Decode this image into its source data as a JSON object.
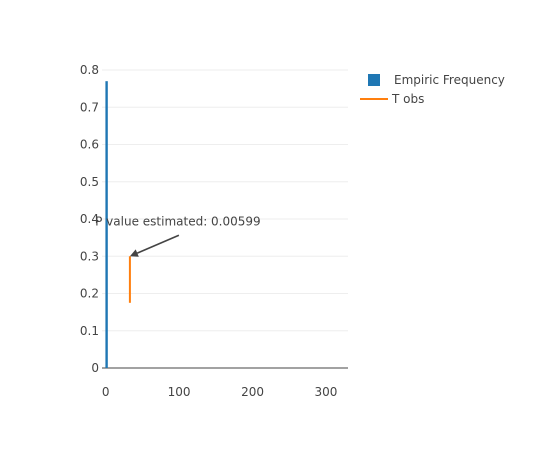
{
  "chart_data": {
    "type": "bar",
    "title": "",
    "xlabel": "",
    "ylabel": "",
    "xlim": [
      -5,
      330
    ],
    "ylim": [
      0,
      0.8
    ],
    "x_ticks": [
      "0",
      "100",
      "200",
      "300"
    ],
    "x_tick_values": [
      0,
      100,
      200,
      300
    ],
    "y_ticks": [
      "0",
      "0.1",
      "0.2",
      "0.3",
      "0.4",
      "0.5",
      "0.6",
      "0.7",
      "0.8"
    ],
    "y_tick_values": [
      0,
      0.1,
      0.2,
      0.3,
      0.4,
      0.5,
      0.6,
      0.7,
      0.8
    ],
    "grid": true,
    "legend_position": "top-right",
    "series": [
      {
        "name": "Empiric Frequency",
        "kind": "bar",
        "color": "#1f77b4",
        "x": [
          1
        ],
        "y": [
          0.77
        ]
      },
      {
        "name": "T obs",
        "kind": "line",
        "color": "#ff7f0e",
        "x": [
          33,
          33
        ],
        "y": [
          0.175,
          0.3
        ]
      }
    ],
    "annotation": {
      "text": "P value estimated: 0.00599",
      "x": 33,
      "y": 0.3,
      "arrow": true
    }
  }
}
